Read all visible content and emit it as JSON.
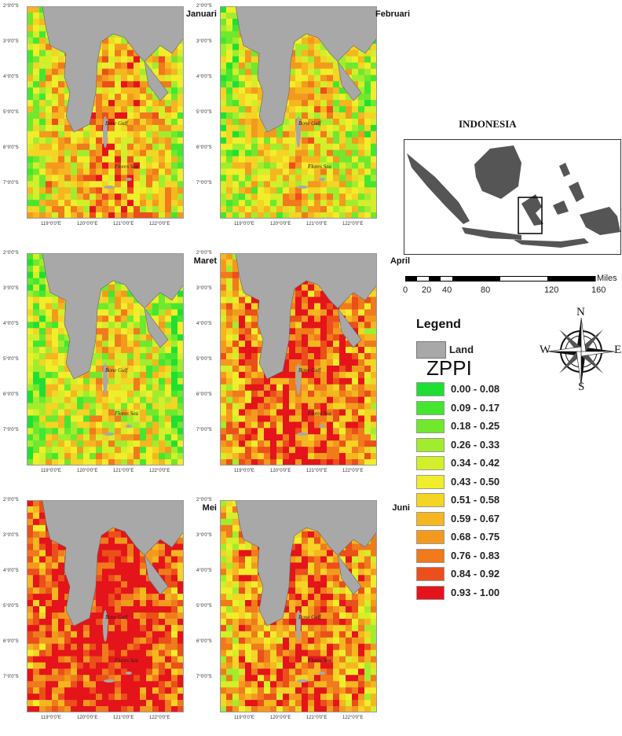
{
  "panels": [
    {
      "month": "Januari",
      "heat": 0.55
    },
    {
      "month": "Februari",
      "heat": 0.45
    },
    {
      "month": "Maret",
      "heat": 0.4
    },
    {
      "month": "April",
      "heat": 0.75
    },
    {
      "month": "Mei",
      "heat": 0.9
    },
    {
      "month": "Juni",
      "heat": 0.7
    }
  ],
  "ylabels": [
    "2°0'0\"S",
    "3°0'0\"S",
    "4°0'0\"S",
    "5°0'0\"S",
    "6°0'0\"S",
    "7°0'0\"S"
  ],
  "xlabels": [
    "119°0'0\"E",
    "120°0'0\"E",
    "121°0'0\"E",
    "122°0'0\"E"
  ],
  "place_labels": {
    "bone": "Bone Gulf",
    "flores": "Flores Sea"
  },
  "inset": {
    "title": "INDONESIA"
  },
  "scale": {
    "unit": "Miles",
    "ticks": [
      "0",
      "20",
      "40",
      "80",
      "120",
      "160"
    ]
  },
  "legend": {
    "title": "Legend",
    "land_label": "Land",
    "index_name": "ZPPI",
    "classes": [
      {
        "range": "0.00 - 0.08",
        "color": "#1fe032"
      },
      {
        "range": "0.09 - 0.17",
        "color": "#44e630"
      },
      {
        "range": "0.18 - 0.25",
        "color": "#6fe82e"
      },
      {
        "range": "0.26 - 0.33",
        "color": "#a2ec2e"
      },
      {
        "range": "0.34 - 0.42",
        "color": "#d2ef2a"
      },
      {
        "range": "0.43 - 0.50",
        "color": "#f0ee2a"
      },
      {
        "range": "0.51 - 0.58",
        "color": "#f4d424"
      },
      {
        "range": "0.59 - 0.67",
        "color": "#f5b620"
      },
      {
        "range": "0.68 - 0.75",
        "color": "#f39a1e"
      },
      {
        "range": "0.76 - 0.83",
        "color": "#f07a1c"
      },
      {
        "range": "0.84 - 0.92",
        "color": "#eb4f1a"
      },
      {
        "range": "0.93 - 1.00",
        "color": "#e4141a"
      }
    ]
  },
  "compass": {
    "n": "N",
    "s": "S",
    "e": "E",
    "w": "W"
  },
  "colors": {
    "land": "#a8a8a8",
    "sea": "#ffffff",
    "inset_land": "#555555"
  }
}
